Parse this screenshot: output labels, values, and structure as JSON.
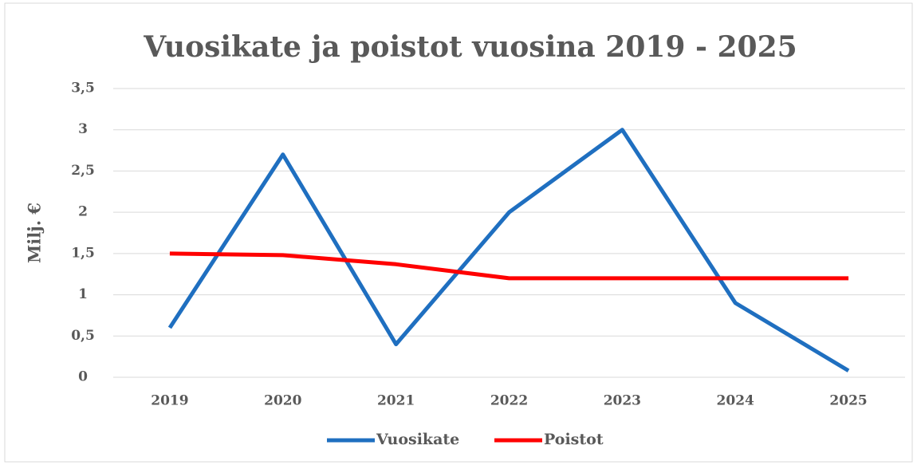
{
  "chart_data": {
    "type": "line",
    "title": "Vuosikate ja poistot vuosina 2019 - 2025",
    "y_label": "Milj. €",
    "categories": [
      "2019",
      "2020",
      "2021",
      "2022",
      "2023",
      "2024",
      "2025"
    ],
    "series": [
      {
        "name": "Vuosikate",
        "color": "#1f6fc0",
        "values": [
          0.6,
          2.7,
          0.4,
          2.0,
          3.0,
          0.9,
          0.08
        ]
      },
      {
        "name": "Poistot",
        "color": "#ff0000",
        "values": [
          1.5,
          1.48,
          1.37,
          1.2,
          1.2,
          1.2,
          1.2
        ]
      }
    ],
    "ylim": [
      0,
      3.5
    ],
    "yticks": [
      0,
      {
        "value": 0.5,
        "label": "0,5"
      },
      1,
      {
        "value": 1.5,
        "label": "1,5"
      },
      2,
      {
        "value": 2.5,
        "label": "2,5"
      },
      3,
      {
        "value": 3.5,
        "label": "3,5"
      }
    ],
    "grid": true,
    "legend": "bottom"
  }
}
